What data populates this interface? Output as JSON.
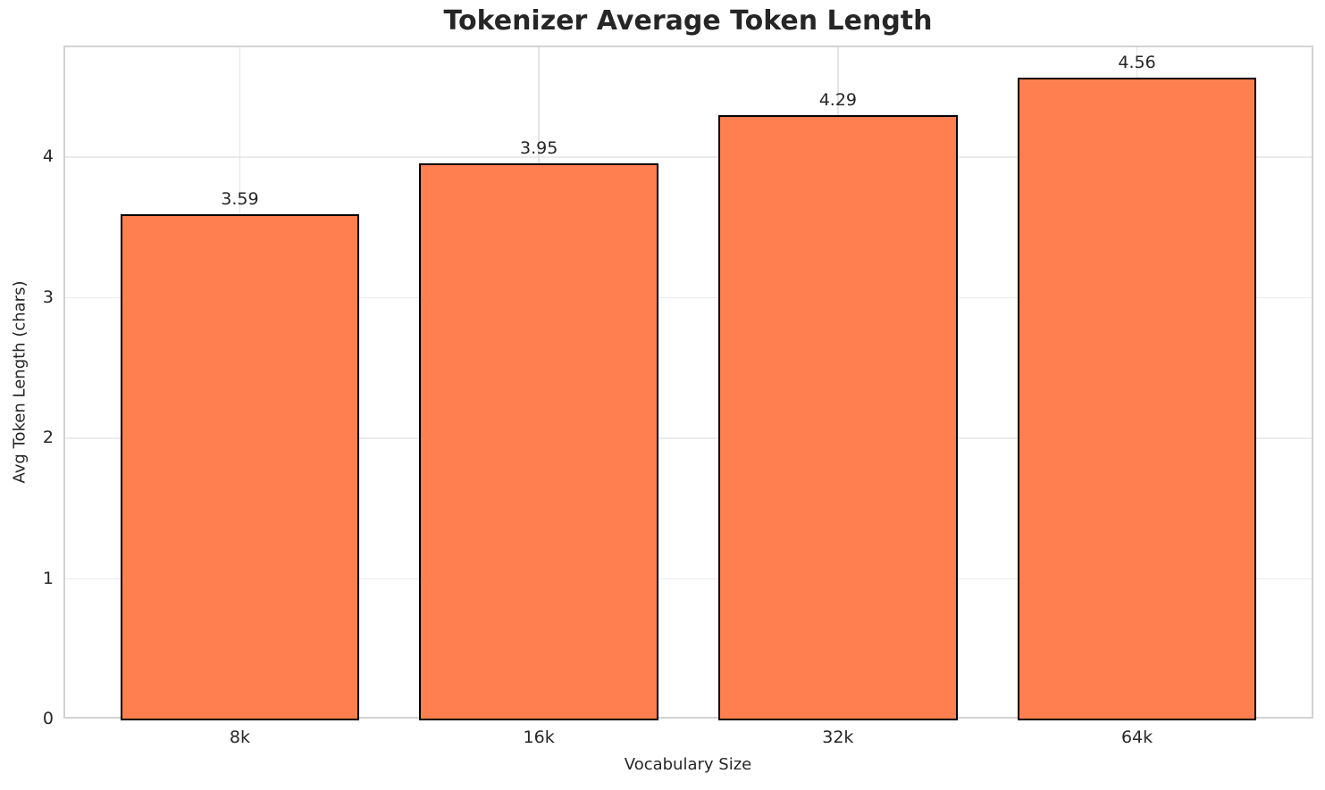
{
  "title": "Tokenizer Average Token Length",
  "chart_data": {
    "type": "bar",
    "title": "Tokenizer Average Token Length",
    "xlabel": "Vocabulary Size",
    "ylabel": "Avg Token Length (chars)",
    "categories": [
      "8k",
      "16k",
      "32k",
      "64k"
    ],
    "values": [
      3.59,
      3.95,
      4.29,
      4.56
    ],
    "bar_value_labels": [
      "3.59",
      "3.95",
      "4.29",
      "4.56"
    ],
    "yticks": [
      0,
      1,
      2,
      3,
      4
    ],
    "ylim": [
      0,
      4.788
    ],
    "xlim": [
      -0.59,
      3.59
    ],
    "bar_width_units": 0.8,
    "grid": true,
    "legend": "none",
    "colors": {
      "bar_fill": "#FF7F50",
      "bar_edge": "#000000",
      "grid_horizontal": "#ebebeb",
      "grid_vertical": "#e4e4e4",
      "spine": "#d2d2d2",
      "text": "#262626",
      "background": "#ffffff"
    }
  }
}
